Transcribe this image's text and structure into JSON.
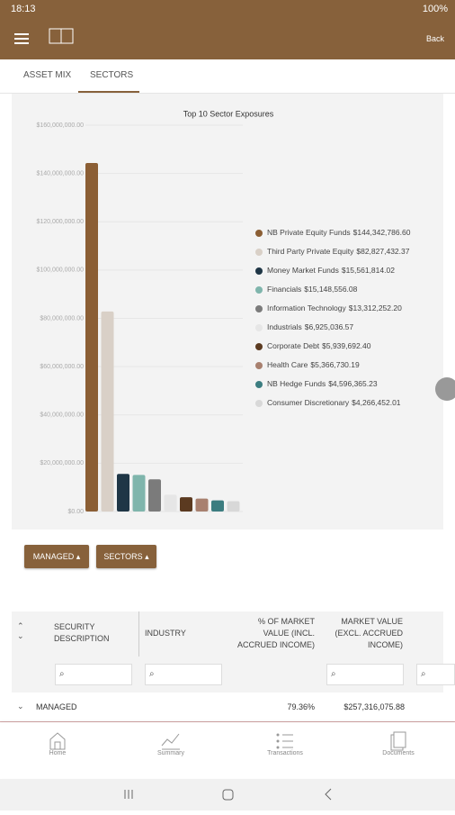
{
  "status_bar": {
    "time": "18:13",
    "battery": "100%"
  },
  "header": {
    "back": "Back"
  },
  "tabs": [
    "ASSET MIX",
    "SECTORS"
  ],
  "chart_data": {
    "type": "bar",
    "title": "Top 10 Sector Exposures",
    "categories": [
      "NB Private Equity Funds",
      "Third Party Private Equity",
      "Money Market Funds",
      "Financials",
      "Information Technology",
      "Industrials",
      "Corporate Debt",
      "Health Care",
      "NB Hedge Funds",
      "Consumer Discretionary"
    ],
    "values": [
      144342786.6,
      82827432.37,
      15561814.02,
      15148556.08,
      13312252.2,
      6925036.57,
      5939692.4,
      5366730.19,
      4596365.23,
      4266452.01
    ],
    "value_labels": [
      "$144,342,786.60",
      "$82,827,432.37",
      "$15,561,814.02",
      "$15,148,556.08",
      "$13,312,252.20",
      "$6,925,036.57",
      "$5,939,692.40",
      "$5,366,730.19",
      "$4,596,365.23",
      "$4,266,452.01"
    ],
    "colors": [
      "#8b5e34",
      "#d9d0c7",
      "#1f3646",
      "#7fb5ac",
      "#7b7b7b",
      "#e6e6e6",
      "#5b3a20",
      "#a8806f",
      "#3c7d80",
      "#d8d8d8"
    ],
    "ylim": [
      0,
      160000000
    ],
    "yticks": [
      {
        "value": 0,
        "label": "$0.00"
      },
      {
        "value": 20000000,
        "label": "$20,000,000.00"
      },
      {
        "value": 40000000,
        "label": "$40,000,000.00"
      },
      {
        "value": 60000000,
        "label": "$60,000,000.00"
      },
      {
        "value": 80000000,
        "label": "$80,000,000.00"
      },
      {
        "value": 100000000,
        "label": "$100,000,000.00"
      },
      {
        "value": 120000000,
        "label": "$120,000,000.00"
      },
      {
        "value": 140000000,
        "label": "$140,000,000.00"
      },
      {
        "value": 160000000,
        "label": "$160,000,000.00"
      }
    ],
    "grid": true,
    "legend": "right"
  },
  "filters": [
    "MANAGED",
    "SECTORS"
  ],
  "table": {
    "columns": [
      "SECURITY DESCRIPTION",
      "INDUSTRY",
      "% OF MARKET VALUE (INCL. ACCRUED INCOME)",
      "MARKET VALUE (EXCL. ACCRUED INCOME)"
    ],
    "row": {
      "label": "MANAGED",
      "percent": "79.36%",
      "market_value": "$257,316,075.88"
    }
  },
  "nav": [
    "Home",
    "Summary",
    "Transactions",
    "Documents"
  ]
}
